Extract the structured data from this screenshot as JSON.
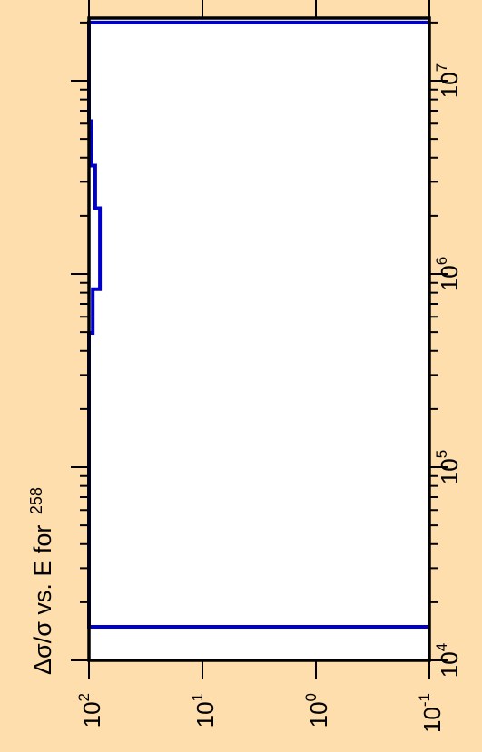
{
  "chart_data": {
    "type": "line",
    "orientation": "rotated-90",
    "title_main": "Δσ/σ vs. E for",
    "title_super": "258",
    "xlabel": "",
    "ylabel": "",
    "x_axis": {
      "scale": "log",
      "range": [
        10000,
        20000000
      ],
      "tick_labels": [
        {
          "value": 10000,
          "base": "10",
          "exp": "4"
        },
        {
          "value": 100000,
          "base": "10",
          "exp": "5"
        },
        {
          "value": 1000000,
          "base": "10",
          "exp": "6"
        },
        {
          "value": 10000000,
          "base": "10",
          "exp": "7"
        }
      ]
    },
    "y_axis": {
      "scale": "log",
      "range": [
        0.1,
        100
      ],
      "tick_labels": [
        {
          "value": 100,
          "base": "10",
          "exp": "2"
        },
        {
          "value": 10,
          "base": "10",
          "exp": "1"
        },
        {
          "value": 1,
          "base": "10",
          "exp": "0"
        },
        {
          "value": 0.1,
          "base": "10",
          "exp": "-1"
        }
      ]
    },
    "series": [
      {
        "color": "#0000CC",
        "step_points": [
          {
            "x": 14914,
            "y": 0.1
          },
          {
            "x": 14914,
            "y": 100
          },
          {
            "x": 495000,
            "y": 100
          },
          {
            "x": 495000,
            "y": 92.5
          },
          {
            "x": 834000,
            "y": 92.5
          },
          {
            "x": 834000,
            "y": 80
          },
          {
            "x": 2190000,
            "y": 80
          },
          {
            "x": 2190000,
            "y": 88
          },
          {
            "x": 3640000,
            "y": 88
          },
          {
            "x": 3640000,
            "y": 96
          },
          {
            "x": 6180000,
            "y": 96
          },
          {
            "x": 6180000,
            "y": 100
          },
          {
            "x": 20000000,
            "y": 100
          },
          {
            "x": 20000000,
            "y": 0.1
          }
        ]
      }
    ],
    "grid": false,
    "legend": "none"
  },
  "colors": {
    "background": "#FFDEAD",
    "plot_area": "#FFFFFF",
    "axis": "#000000",
    "series": "#0000CC"
  }
}
